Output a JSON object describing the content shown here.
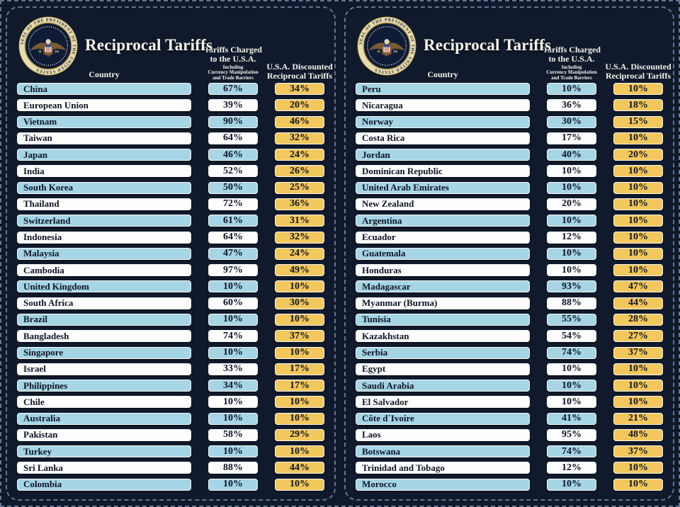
{
  "title": "Reciprocal Tariffs",
  "seal_text": "SEAL OF THE PRESIDENT OF THE UNITED STATES",
  "columns": {
    "country": "Country",
    "charged_line1": "Tariffs Charged",
    "charged_line2": "to the U.S.A.",
    "charged_sub1": "Including",
    "charged_sub2": "Currency Manipulation",
    "charged_sub3": "and Trade Barriers",
    "discounted_line1": "U.S.A. Discounted",
    "discounted_line2": "Reciprocal Tariffs"
  },
  "colors": {
    "row_blue": "#a6d5e6",
    "row_white": "#fdfdfd",
    "value_yellow": "#f2c75c",
    "bg_dark": "#0a101d",
    "card_bg": "#101a2c",
    "stitch": "#64748f",
    "text_dark": "#0d1424",
    "text_light": "#f5f3ea",
    "seal_gold": "#c9a84c"
  },
  "chart_data": {
    "type": "table",
    "title": "Reciprocal Tariffs",
    "columns": [
      "Country",
      "Tariffs Charged to the U.S.A. Including Currency Manipulation and Trade Barriers",
      "U.S.A. Discounted Reciprocal Tariffs"
    ],
    "value_unit": "%",
    "panels": [
      {
        "rows": [
          [
            "China",
            67,
            34
          ],
          [
            "European Union",
            39,
            20
          ],
          [
            "Vietnam",
            90,
            46
          ],
          [
            "Taiwan",
            64,
            32
          ],
          [
            "Japan",
            46,
            24
          ],
          [
            "India",
            52,
            26
          ],
          [
            "South Korea",
            50,
            25
          ],
          [
            "Thailand",
            72,
            36
          ],
          [
            "Switzerland",
            61,
            31
          ],
          [
            "Indonesia",
            64,
            32
          ],
          [
            "Malaysia",
            47,
            24
          ],
          [
            "Cambodia",
            97,
            49
          ],
          [
            "United Kingdom",
            10,
            10
          ],
          [
            "South Africa",
            60,
            30
          ],
          [
            "Brazil",
            10,
            10
          ],
          [
            "Bangladesh",
            74,
            37
          ],
          [
            "Singapore",
            10,
            10
          ],
          [
            "Israel",
            33,
            17
          ],
          [
            "Philippines",
            34,
            17
          ],
          [
            "Chile",
            10,
            10
          ],
          [
            "Australia",
            10,
            10
          ],
          [
            "Pakistan",
            58,
            29
          ],
          [
            "Turkey",
            10,
            10
          ],
          [
            "Sri Lanka",
            88,
            44
          ],
          [
            "Colombia",
            10,
            10
          ]
        ]
      },
      {
        "rows": [
          [
            "Peru",
            10,
            10
          ],
          [
            "Nicaragua",
            36,
            18
          ],
          [
            "Norway",
            30,
            15
          ],
          [
            "Costa Rica",
            17,
            10
          ],
          [
            "Jordan",
            40,
            20
          ],
          [
            "Dominican Republic",
            10,
            10
          ],
          [
            "United Arab Emirates",
            10,
            10
          ],
          [
            "New Zealand",
            20,
            10
          ],
          [
            "Argentina",
            10,
            10
          ],
          [
            "Ecuador",
            12,
            10
          ],
          [
            "Guatemala",
            10,
            10
          ],
          [
            "Honduras",
            10,
            10
          ],
          [
            "Madagascar",
            93,
            47
          ],
          [
            "Myanmar (Burma)",
            88,
            44
          ],
          [
            "Tunisia",
            55,
            28
          ],
          [
            "Kazakhstan",
            54,
            27
          ],
          [
            "Serbia",
            74,
            37
          ],
          [
            "Egypt",
            10,
            10
          ],
          [
            "Saudi Arabia",
            10,
            10
          ],
          [
            "El Salvador",
            10,
            10
          ],
          [
            "Côte d`Ivoire",
            41,
            21
          ],
          [
            "Laos",
            95,
            48
          ],
          [
            "Botswana",
            74,
            37
          ],
          [
            "Trinidad and Tobago",
            12,
            10
          ],
          [
            "Morocco",
            10,
            10
          ]
        ]
      }
    ]
  }
}
